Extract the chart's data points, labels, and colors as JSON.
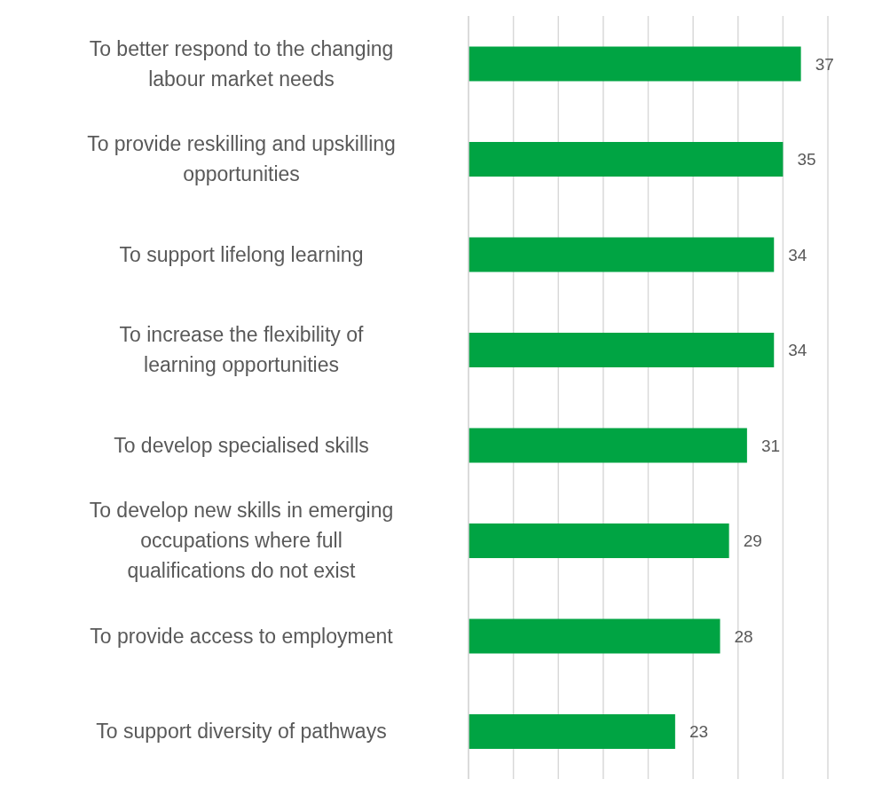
{
  "chart_data": {
    "type": "bar",
    "orientation": "horizontal",
    "categories": [
      "To better respond to the changing labour market needs",
      "To provide reskilling and upskilling opportunities",
      "To support lifelong learning",
      "To increase the flexibility of learning opportunities",
      "To develop specialised skills",
      "To develop new skills in emerging occupations where full qualifications do not exist",
      "To provide access to employment",
      "To support diversity of  pathways"
    ],
    "values": [
      37,
      35,
      34,
      34,
      31,
      29,
      28,
      23
    ],
    "color": "#00a443",
    "xlim": [
      0,
      40
    ],
    "xticks": [
      {
        "value": 0,
        "label": null
      },
      {
        "value": 5,
        "label": null
      },
      {
        "value": 10,
        "label": null
      },
      {
        "value": 15,
        "label": null
      },
      {
        "value": 20,
        "label": null
      },
      {
        "value": 25,
        "label": null
      },
      {
        "value": 30,
        "label": null
      },
      {
        "value": 35,
        "label": null
      },
      {
        "value": 40,
        "label": null
      }
    ],
    "grid": "x",
    "tick_labels": "y",
    "data_labels": true
  }
}
